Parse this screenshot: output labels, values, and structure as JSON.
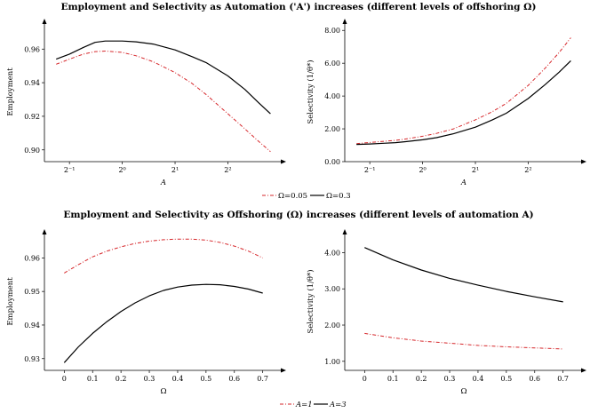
{
  "top_title": "Employment and Selectivity as Automation ('A') increases (different levels of offshoring Ω)",
  "bottom_title": "Employment and Selectivity as Offshoring (Ω) increases (different levels of automation A)",
  "top_legend": [
    "Ω=0.05",
    "Ω=0.3"
  ],
  "bottom_legend": [
    "A=1",
    "A=3"
  ],
  "colors": {
    "red": "#d6262a",
    "black": "#000000"
  },
  "chart_data": [
    {
      "type": "line",
      "title": "",
      "xlabel": "A",
      "ylabel": "Employment",
      "xscale": "log2",
      "xlim": [
        0.36,
        8.2
      ],
      "ylim": [
        0.893,
        0.976
      ],
      "xticks": [
        0.5,
        1,
        2,
        4
      ],
      "xtick_labels": [
        "2⁻¹",
        "2⁰",
        "2¹",
        "2²"
      ],
      "yticks": [
        0.9,
        0.92,
        0.94,
        0.96
      ],
      "ytick_labels": [
        "0.90",
        "0.92",
        "0.94",
        "0.96"
      ],
      "series": [
        {
          "name": "Ω=0.05",
          "style": "dashdot",
          "color": "#d6262a",
          "x": [
            0.42,
            0.5,
            0.6,
            0.7,
            0.8,
            1.0,
            1.2,
            1.5,
            2.0,
            2.5,
            3.0,
            4.0,
            5.0,
            6.0,
            7.0
          ],
          "y": [
            0.951,
            0.954,
            0.957,
            0.9585,
            0.9588,
            0.958,
            0.956,
            0.9525,
            0.946,
            0.9395,
            0.933,
            0.9215,
            0.9125,
            0.905,
            0.899
          ]
        },
        {
          "name": "Ω=0.3",
          "style": "solid",
          "color": "#000000",
          "x": [
            0.42,
            0.5,
            0.6,
            0.7,
            0.8,
            1.0,
            1.2,
            1.5,
            2.0,
            2.5,
            3.0,
            4.0,
            5.0,
            6.0,
            7.0
          ],
          "y": [
            0.954,
            0.957,
            0.961,
            0.964,
            0.9648,
            0.9648,
            0.9643,
            0.963,
            0.9595,
            0.9555,
            0.952,
            0.944,
            0.936,
            0.928,
            0.9215
          ]
        }
      ]
    },
    {
      "type": "line",
      "title": "",
      "xlabel": "A",
      "ylabel": "Selectivity (1/θ*)",
      "xscale": "log2",
      "xlim": [
        0.36,
        8.2
      ],
      "ylim": [
        0.0,
        8.5
      ],
      "xticks": [
        0.5,
        1,
        2,
        4
      ],
      "xtick_labels": [
        "2⁻¹",
        "2⁰",
        "2¹",
        "2²"
      ],
      "yticks": [
        0,
        2,
        4,
        6,
        8
      ],
      "ytick_labels": [
        "0.00",
        "2.00",
        "4.00",
        "6.00",
        "8.00"
      ],
      "series": [
        {
          "name": "Ω=0.05",
          "style": "dashdot",
          "color": "#d6262a",
          "x": [
            0.42,
            0.5,
            0.6,
            0.7,
            0.8,
            1.0,
            1.2,
            1.5,
            2.0,
            2.5,
            3.0,
            4.0,
            5.0,
            6.0,
            7.0
          ],
          "y": [
            1.1,
            1.17,
            1.24,
            1.3,
            1.38,
            1.55,
            1.72,
            2.0,
            2.55,
            3.05,
            3.55,
            4.65,
            5.7,
            6.65,
            7.55
          ]
        },
        {
          "name": "Ω=0.3",
          "style": "solid",
          "color": "#000000",
          "x": [
            0.42,
            0.5,
            0.6,
            0.7,
            0.8,
            1.0,
            1.2,
            1.5,
            2.0,
            2.5,
            3.0,
            4.0,
            5.0,
            6.0,
            7.0
          ],
          "y": [
            1.05,
            1.08,
            1.12,
            1.16,
            1.22,
            1.33,
            1.46,
            1.7,
            2.1,
            2.55,
            2.95,
            3.85,
            4.7,
            5.45,
            6.15
          ]
        }
      ]
    },
    {
      "type": "line",
      "title": "",
      "xlabel": "Ω",
      "ylabel": "Employment",
      "xlim": [
        -0.07,
        0.77
      ],
      "ylim": [
        0.9265,
        0.9675
      ],
      "xticks": [
        0,
        0.1,
        0.2,
        0.3,
        0.4,
        0.5,
        0.6,
        0.7
      ],
      "xtick_labels": [
        "0",
        "0.1",
        "0.2",
        "0.3",
        "0.4",
        "0.5",
        "0.6",
        "0.7"
      ],
      "yticks": [
        0.93,
        0.94,
        0.95,
        0.96
      ],
      "ytick_labels": [
        "0.93",
        "0.94",
        "0.95",
        "0.96"
      ],
      "series": [
        {
          "name": "A=1",
          "style": "dashdot",
          "color": "#d6262a",
          "x": [
            0,
            0.05,
            0.1,
            0.15,
            0.2,
            0.25,
            0.3,
            0.35,
            0.4,
            0.45,
            0.5,
            0.55,
            0.6,
            0.65,
            0.7
          ],
          "y": [
            0.9555,
            0.958,
            0.9603,
            0.962,
            0.9633,
            0.9643,
            0.965,
            0.9654,
            0.9656,
            0.9656,
            0.9653,
            0.9646,
            0.9635,
            0.962,
            0.96
          ]
        },
        {
          "name": "A=3",
          "style": "solid",
          "color": "#000000",
          "x": [
            0,
            0.05,
            0.1,
            0.15,
            0.2,
            0.25,
            0.3,
            0.35,
            0.4,
            0.45,
            0.5,
            0.55,
            0.6,
            0.65,
            0.7
          ],
          "y": [
            0.9288,
            0.9335,
            0.9375,
            0.941,
            0.944,
            0.9466,
            0.9487,
            0.9503,
            0.9513,
            0.9519,
            0.9521,
            0.952,
            0.9515,
            0.9507,
            0.9495
          ]
        }
      ]
    },
    {
      "type": "line",
      "title": "",
      "xlabel": "Ω",
      "ylabel": "Selectivity (1/θ*)",
      "xlim": [
        -0.07,
        0.77
      ],
      "ylim": [
        0.75,
        4.55
      ],
      "xticks": [
        0,
        0.1,
        0.2,
        0.3,
        0.4,
        0.5,
        0.6,
        0.7
      ],
      "xtick_labels": [
        "0",
        "0.1",
        "0.2",
        "0.3",
        "0.4",
        "0.5",
        "0.6",
        "0.7"
      ],
      "yticks": [
        1,
        2,
        3,
        4
      ],
      "ytick_labels": [
        "1.00",
        "2.00",
        "3.00",
        "4.00"
      ],
      "series": [
        {
          "name": "A=1",
          "style": "dashdot",
          "color": "#d6262a",
          "x": [
            0,
            0.1,
            0.2,
            0.3,
            0.4,
            0.5,
            0.6,
            0.7
          ],
          "y": [
            1.77,
            1.65,
            1.56,
            1.5,
            1.44,
            1.4,
            1.37,
            1.34
          ]
        },
        {
          "name": "A=3",
          "style": "solid",
          "color": "#000000",
          "x": [
            0,
            0.1,
            0.2,
            0.3,
            0.4,
            0.5,
            0.6,
            0.7
          ],
          "y": [
            4.14,
            3.8,
            3.52,
            3.29,
            3.1,
            2.93,
            2.78,
            2.64
          ]
        }
      ]
    }
  ]
}
